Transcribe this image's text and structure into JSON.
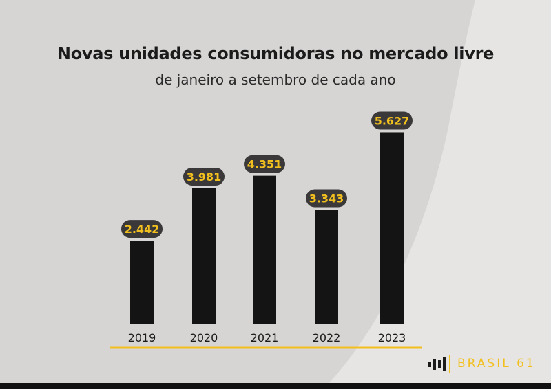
{
  "title": "Novas unidades consumidoras no mercado livre",
  "subtitle": "de janeiro a setembro de cada ano",
  "chart_data": {
    "type": "bar",
    "title": "Novas unidades consumidoras no mercado livre",
    "subtitle": "de janeiro a setembro de cada ano",
    "categories": [
      "2019",
      "2020",
      "2021",
      "2022",
      "2023"
    ],
    "values": [
      2442,
      3981,
      4351,
      3343,
      5627
    ],
    "value_labels": [
      "2.442",
      "3.981",
      "4.351",
      "3.343",
      "5.627"
    ],
    "xlabel": "",
    "ylabel": "",
    "grid": false,
    "legend": "none",
    "colors": {
      "bar": "#141414",
      "label_bg": "#3a3838",
      "label_text": "#f2c01e",
      "axis": "#f2c01e"
    }
  },
  "brand": {
    "name": "BRASIL 61",
    "icon": "sound-bars-icon"
  },
  "colors": {
    "background": "#d7d5d4",
    "accent": "#f2c01e",
    "text": "#1b1b1b"
  }
}
